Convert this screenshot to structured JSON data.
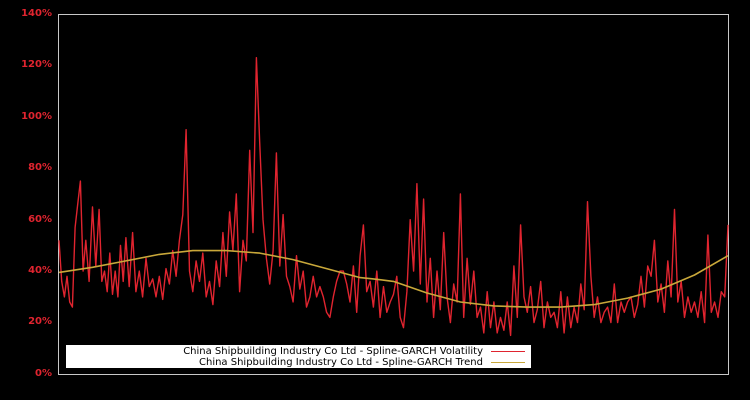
{
  "chart_data": {
    "type": "line",
    "title": "",
    "xlabel": "",
    "ylabel": "",
    "ylim": [
      0,
      140
    ],
    "y_tick_labels": [
      "0%",
      "20%",
      "40%",
      "60%",
      "80%",
      "100%",
      "120%",
      "140%"
    ],
    "y_ticks": [
      0,
      20,
      40,
      60,
      80,
      100,
      120,
      140
    ],
    "x_tick_labels": [],
    "grid": false,
    "legend_position": "lower left",
    "background": "#000000",
    "axis_color": "#c8c8c8",
    "tick_label_color": "#e0242f",
    "x_note": "x is normalized position across the time axis (0 = left edge, 1 = right edge); no x tick labels are shown",
    "series": [
      {
        "name": "China Shipbuilding Industry Co Ltd - Spline-GARCH Volatility",
        "color": "#e0242f",
        "x": [
          0.0,
          0.004,
          0.008,
          0.012,
          0.016,
          0.02,
          0.024,
          0.028,
          0.032,
          0.036,
          0.04,
          0.045,
          0.05,
          0.055,
          0.06,
          0.064,
          0.068,
          0.072,
          0.076,
          0.08,
          0.084,
          0.088,
          0.092,
          0.096,
          0.1,
          0.105,
          0.11,
          0.115,
          0.12,
          0.125,
          0.13,
          0.135,
          0.14,
          0.145,
          0.15,
          0.155,
          0.16,
          0.165,
          0.17,
          0.175,
          0.18,
          0.185,
          0.19,
          0.195,
          0.2,
          0.205,
          0.21,
          0.215,
          0.22,
          0.225,
          0.23,
          0.235,
          0.24,
          0.245,
          0.25,
          0.255,
          0.26,
          0.265,
          0.27,
          0.275,
          0.28,
          0.285,
          0.29,
          0.295,
          0.3,
          0.305,
          0.31,
          0.315,
          0.32,
          0.325,
          0.33,
          0.335,
          0.34,
          0.345,
          0.35,
          0.355,
          0.36,
          0.365,
          0.37,
          0.375,
          0.38,
          0.385,
          0.39,
          0.395,
          0.4,
          0.405,
          0.41,
          0.415,
          0.42,
          0.425,
          0.43,
          0.435,
          0.44,
          0.445,
          0.45,
          0.455,
          0.46,
          0.465,
          0.47,
          0.475,
          0.48,
          0.485,
          0.49,
          0.495,
          0.5,
          0.505,
          0.51,
          0.515,
          0.52,
          0.525,
          0.53,
          0.535,
          0.54,
          0.545,
          0.55,
          0.555,
          0.56,
          0.565,
          0.57,
          0.575,
          0.58,
          0.585,
          0.59,
          0.595,
          0.6,
          0.605,
          0.61,
          0.615,
          0.62,
          0.625,
          0.63,
          0.635,
          0.64,
          0.645,
          0.65,
          0.655,
          0.66,
          0.665,
          0.67,
          0.675,
          0.68,
          0.685,
          0.69,
          0.695,
          0.7,
          0.705,
          0.71,
          0.715,
          0.72,
          0.725,
          0.73,
          0.735,
          0.74,
          0.745,
          0.75,
          0.755,
          0.76,
          0.765,
          0.77,
          0.775,
          0.78,
          0.785,
          0.79,
          0.795,
          0.8,
          0.805,
          0.81,
          0.815,
          0.82,
          0.825,
          0.83,
          0.835,
          0.84,
          0.845,
          0.85,
          0.855,
          0.86,
          0.865,
          0.87,
          0.875,
          0.88,
          0.885,
          0.89,
          0.895,
          0.9,
          0.905,
          0.91,
          0.915,
          0.92,
          0.925,
          0.93,
          0.935,
          0.94,
          0.945,
          0.95,
          0.955,
          0.96,
          0.965,
          0.97,
          0.975,
          0.98,
          0.985,
          0.99,
          0.995,
          1.0
        ],
        "values": [
          52,
          36,
          30,
          38,
          28,
          26,
          57,
          66,
          75,
          40,
          52,
          36,
          65,
          42,
          64,
          36,
          40,
          32,
          47,
          31,
          40,
          30,
          50,
          36,
          53,
          34,
          55,
          32,
          40,
          30,
          45,
          34,
          37,
          30,
          38,
          29,
          41,
          35,
          48,
          38,
          52,
          62,
          95,
          40,
          32,
          44,
          36,
          47,
          30,
          36,
          27,
          44,
          34,
          55,
          38,
          63,
          48,
          70,
          32,
          52,
          44,
          87,
          55,
          123,
          90,
          60,
          45,
          35,
          48,
          86,
          42,
          62,
          38,
          34,
          28,
          46,
          33,
          40,
          26,
          30,
          38,
          30,
          34,
          30,
          24,
          22,
          30,
          36,
          40,
          40,
          35,
          28,
          42,
          24,
          46,
          58,
          32,
          36,
          26,
          40,
          22,
          34,
          24,
          28,
          31,
          38,
          22,
          18,
          32,
          60,
          40,
          74,
          35,
          68,
          28,
          45,
          22,
          40,
          25,
          55,
          30,
          20,
          35,
          28,
          70,
          22,
          45,
          27,
          40,
          22,
          26,
          16,
          32,
          18,
          28,
          16,
          22,
          17,
          28,
          15,
          42,
          22,
          58,
          30,
          24,
          34,
          20,
          25,
          36,
          18,
          28,
          22,
          24,
          18,
          32,
          16,
          30,
          18,
          26,
          20,
          35,
          25,
          67,
          38,
          22,
          30,
          20,
          24,
          26,
          20,
          35,
          20,
          28,
          24,
          28,
          30,
          22,
          27,
          38,
          26,
          42,
          38,
          52,
          28,
          35,
          24,
          44,
          30,
          64,
          28,
          36,
          22,
          30,
          24,
          28,
          22,
          32,
          20,
          54,
          24,
          28,
          22,
          32,
          30,
          58
        ]
      },
      {
        "name": "China Shipbuilding Industry Co Ltd - Spline-GARCH Trend",
        "color": "#c9a83a",
        "x": [
          0.0,
          0.05,
          0.1,
          0.15,
          0.2,
          0.25,
          0.3,
          0.35,
          0.4,
          0.45,
          0.47,
          0.5,
          0.55,
          0.6,
          0.65,
          0.7,
          0.75,
          0.8,
          0.85,
          0.9,
          0.95,
          1.0
        ],
        "values": [
          39.5,
          41.5,
          44,
          46.5,
          48,
          48,
          47,
          44.5,
          41,
          37.5,
          37,
          36,
          31.5,
          28,
          26.5,
          26,
          26,
          27,
          29.5,
          33,
          38.5,
          46
        ]
      }
    ]
  },
  "legend": {
    "items": [
      {
        "label": "China Shipbuilding Industry Co Ltd - Spline-GARCH Volatility",
        "color": "#e0242f"
      },
      {
        "label": "China Shipbuilding Industry Co Ltd - Spline-GARCH Trend",
        "color": "#c9a83a"
      }
    ]
  }
}
